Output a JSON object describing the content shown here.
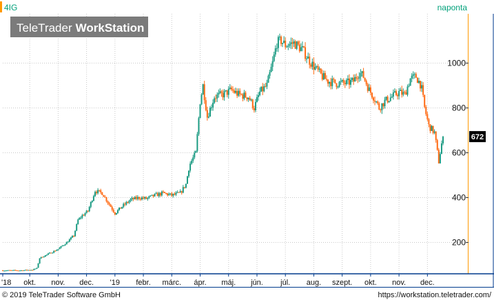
{
  "chart_data": {
    "type": "candlestick",
    "symbol": "4IG",
    "period": "naponta",
    "branding": {
      "part1": "TeleTrader",
      "part2": "WorkStation"
    },
    "footer": {
      "copyright": "© 2019 TeleTrader Software GmbH",
      "url": "https://workstation.teletrader.com/"
    },
    "y_ticks": [
      200,
      400,
      600,
      800,
      1000
    ],
    "y_range": [
      60,
      1220
    ],
    "x_ticks": [
      "'18",
      "okt.",
      "nov.",
      "dec.",
      "'19",
      "febr.",
      "márc.",
      "ápr.",
      "máj.",
      "jún.",
      "júl.",
      "aug.",
      "szept.",
      "okt.",
      "nov.",
      "dec."
    ],
    "x_tick_month_index": [
      0,
      1,
      2,
      3,
      4,
      5,
      6,
      7,
      8,
      9,
      10,
      11,
      12,
      13,
      14,
      15
    ],
    "month_range": [
      0.05,
      16.35
    ],
    "last_price": "672",
    "colors": {
      "up": "#1a9a82",
      "down": "#ff6a13",
      "grid": "#c8c8c8",
      "axis_line": "#003a8c",
      "accent": "#ff9900",
      "last_price_bg": "#000000",
      "brand_bg": "#7b7b7b"
    },
    "price_anchors": [
      [
        0.05,
        75
      ],
      [
        0.7,
        75
      ],
      [
        1.1,
        78
      ],
      [
        1.25,
        85
      ],
      [
        1.35,
        130
      ],
      [
        1.6,
        145
      ],
      [
        2.0,
        170
      ],
      [
        2.3,
        200
      ],
      [
        2.55,
        230
      ],
      [
        2.7,
        300
      ],
      [
        2.85,
        320
      ],
      [
        3.05,
        340
      ],
      [
        3.3,
        430
      ],
      [
        3.55,
        420
      ],
      [
        3.8,
        370
      ],
      [
        4.0,
        330
      ],
      [
        4.25,
        360
      ],
      [
        4.55,
        390
      ],
      [
        4.85,
        400
      ],
      [
        5.1,
        395
      ],
      [
        5.4,
        410
      ],
      [
        5.7,
        420
      ],
      [
        6.0,
        410
      ],
      [
        6.3,
        420
      ],
      [
        6.5,
        460
      ],
      [
        6.62,
        545
      ],
      [
        6.85,
        600
      ],
      [
        7.0,
        830
      ],
      [
        7.1,
        900
      ],
      [
        7.25,
        760
      ],
      [
        7.5,
        850
      ],
      [
        7.8,
        860
      ],
      [
        8.1,
        880
      ],
      [
        8.35,
        860
      ],
      [
        8.7,
        850
      ],
      [
        8.9,
        800
      ],
      [
        9.1,
        870
      ],
      [
        9.35,
        900
      ],
      [
        9.55,
        1000
      ],
      [
        9.7,
        1090
      ],
      [
        9.85,
        1100
      ],
      [
        10.0,
        1080
      ],
      [
        10.3,
        1090
      ],
      [
        10.6,
        1060
      ],
      [
        10.85,
        1010
      ],
      [
        11.1,
        970
      ],
      [
        11.3,
        940
      ],
      [
        11.5,
        920
      ],
      [
        11.8,
        910
      ],
      [
        12.15,
        910
      ],
      [
        12.4,
        920
      ],
      [
        12.6,
        960
      ],
      [
        12.75,
        940
      ],
      [
        12.95,
        880
      ],
      [
        13.15,
        840
      ],
      [
        13.3,
        800
      ],
      [
        13.5,
        830
      ],
      [
        13.75,
        850
      ],
      [
        14.0,
        870
      ],
      [
        14.2,
        860
      ],
      [
        14.4,
        930
      ],
      [
        14.6,
        940
      ],
      [
        14.78,
        900
      ],
      [
        14.9,
        800
      ],
      [
        15.05,
        720
      ],
      [
        15.25,
        690
      ],
      [
        15.4,
        560
      ],
      [
        15.5,
        640
      ],
      [
        15.58,
        672
      ]
    ]
  }
}
